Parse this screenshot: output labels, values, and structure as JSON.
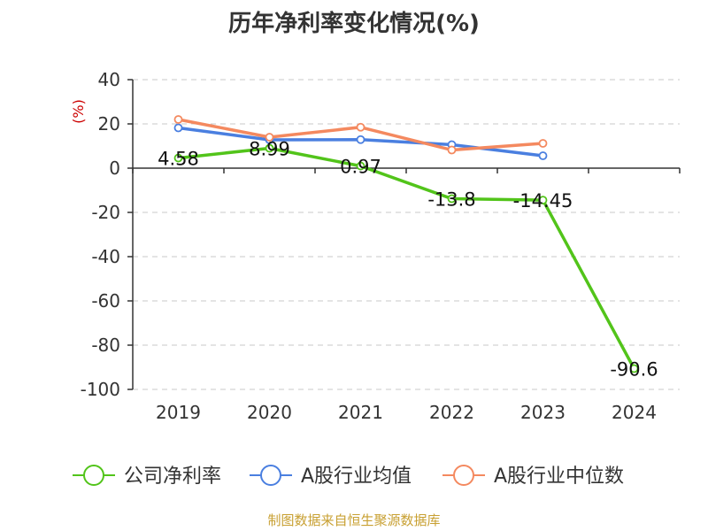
{
  "chart_data": {
    "type": "line",
    "title": "历年净利率变化情况(%)",
    "ylabel": "(%)",
    "categories": [
      "2019",
      "2020",
      "2021",
      "2022",
      "2023",
      "2024"
    ],
    "yticks": [
      40,
      20,
      0,
      -20,
      -40,
      -60,
      -80,
      -100
    ],
    "ylim": [
      -100,
      40
    ],
    "grid": true,
    "legend_position": "bottom",
    "series": [
      {
        "name": "公司净利率",
        "color": "#52c41a",
        "values": [
          4.58,
          8.99,
          0.97,
          -13.8,
          -14.45,
          -90.6
        ],
        "labels": [
          "4.58",
          "8.99",
          "0.97",
          "-13.8",
          "-14.45",
          "-90.6"
        ]
      },
      {
        "name": "A股行业均值",
        "color": "#4a7fe0",
        "values": [
          18.2,
          12.8,
          12.9,
          10.6,
          5.6,
          null
        ]
      },
      {
        "name": "A股行业中位数",
        "color": "#f4895f",
        "values": [
          22.0,
          14.0,
          18.5,
          8.2,
          11.2,
          null
        ]
      }
    ]
  },
  "footer": {
    "source": "制图数据来自恒生聚源数据库"
  }
}
